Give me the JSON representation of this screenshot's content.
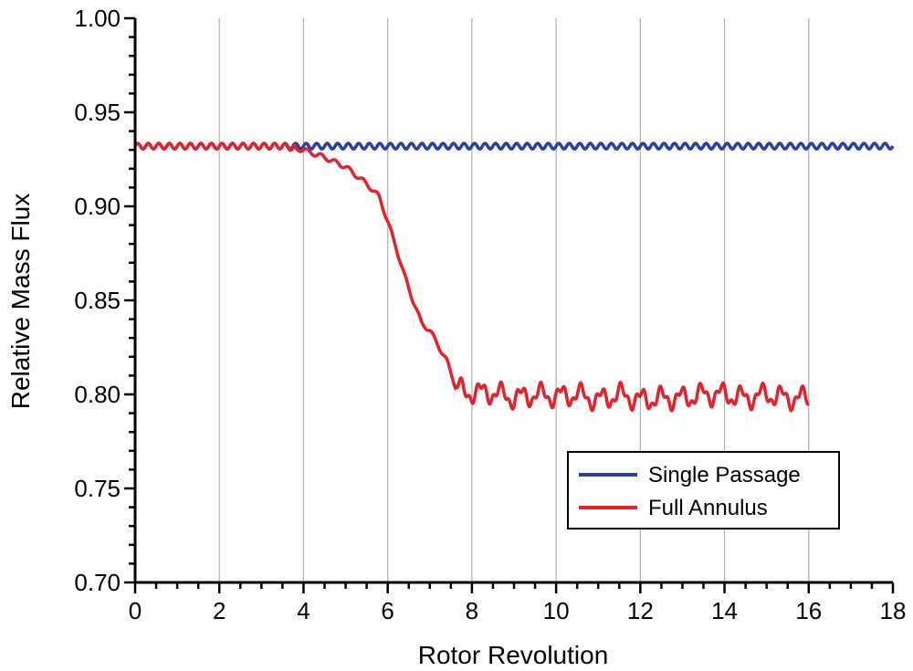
{
  "chart_data": {
    "type": "line",
    "title": "",
    "xlabel": "Rotor Revolution",
    "ylabel": "Relative Mass Flux",
    "xlim": [
      0,
      18
    ],
    "ylim": [
      0.7,
      1.0
    ],
    "x_ticks": [
      0,
      2,
      4,
      6,
      8,
      10,
      12,
      14,
      16,
      18
    ],
    "x_tick_labels": [
      "0",
      "2",
      "4",
      "6",
      "8",
      "10",
      "12",
      "14",
      "16",
      "18"
    ],
    "y_ticks": [
      0.7,
      0.75,
      0.8,
      0.85,
      0.9,
      0.95,
      1.0
    ],
    "y_tick_labels": [
      "0.70",
      "0.75",
      "0.80",
      "0.85",
      "0.90",
      "0.95",
      "1.00"
    ],
    "grid": "vertical lines at major x ticks",
    "legend_position": "lower-right",
    "series": [
      {
        "name": "Single Passage",
        "color": "#2b3fa0",
        "x": [
          0,
          18
        ],
        "y": [
          0.932,
          0.932
        ],
        "oscillation_amplitude": 0.0015,
        "oscillations_per_revolution": 4
      },
      {
        "name": "Full Annulus",
        "color": "#e8202a",
        "x": [
          0,
          3.5,
          4.0,
          4.5,
          5.0,
          5.5,
          5.8,
          6.0,
          6.2,
          6.4,
          6.6,
          6.8,
          7.0,
          7.2,
          7.4,
          7.6,
          7.8,
          8.0,
          8.5,
          9.0,
          9.5,
          10.0,
          10.5,
          11.0,
          11.5,
          12.0,
          12.5,
          13.0,
          13.5,
          14.0,
          14.5,
          15.0,
          15.5,
          16.0
        ],
        "y": [
          0.932,
          0.932,
          0.93,
          0.926,
          0.921,
          0.912,
          0.905,
          0.892,
          0.878,
          0.863,
          0.85,
          0.838,
          0.834,
          0.826,
          0.818,
          0.805,
          0.801,
          0.801,
          0.801,
          0.798,
          0.8,
          0.799,
          0.8,
          0.797,
          0.8,
          0.797,
          0.798,
          0.798,
          0.8,
          0.8,
          0.798,
          0.8,
          0.798,
          0.798
        ]
      }
    ]
  }
}
